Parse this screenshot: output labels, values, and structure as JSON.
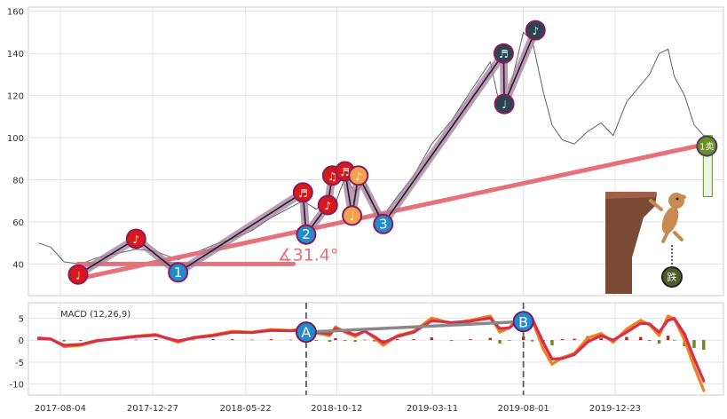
{
  "chart_data": [
    {
      "type": "line",
      "panel": "price",
      "xlim": [
        "2017-06-15",
        "2020-06-10"
      ],
      "ylim": [
        25,
        162
      ],
      "y_ticks": [
        40,
        60,
        80,
        100,
        120,
        140,
        160
      ],
      "grid": true,
      "price_series": {
        "x": [
          "2017-07-01",
          "2017-07-20",
          "2017-08-10",
          "2017-09-05",
          "2017-10-01",
          "2017-11-01",
          "2017-12-01",
          "2018-01-01",
          "2018-02-05",
          "2018-03-01",
          "2018-04-01",
          "2018-05-01",
          "2018-06-01",
          "2018-07-01",
          "2018-08-01",
          "2018-08-20",
          "2018-09-10",
          "2018-10-01",
          "2018-10-10",
          "2018-10-25",
          "2018-11-10",
          "2018-11-25",
          "2018-12-10",
          "2018-12-24",
          "2019-01-15",
          "2019-02-10",
          "2019-03-10",
          "2019-04-10",
          "2019-05-10",
          "2019-06-10",
          "2019-06-25",
          "2019-07-10",
          "2019-08-01",
          "2019-08-15",
          "2019-09-01",
          "2019-09-15",
          "2019-10-01",
          "2019-10-20",
          "2019-11-10",
          "2019-12-01",
          "2019-12-20",
          "2020-01-10",
          "2020-02-01",
          "2020-02-15",
          "2020-03-01",
          "2020-03-15",
          "2020-03-25",
          "2020-04-10",
          "2020-04-25",
          "2020-05-10"
        ],
        "y": [
          50,
          48,
          41,
          40,
          43,
          45,
          47,
          46,
          42,
          45,
          49,
          52,
          56,
          62,
          67,
          70,
          66,
          73,
          69,
          81,
          74,
          79,
          67,
          63,
          72,
          82,
          97,
          108,
          122,
          136,
          115,
          122,
          150,
          146,
          122,
          106,
          99,
          97,
          103,
          107,
          101,
          117,
          125,
          130,
          140,
          142,
          129,
          120,
          106,
          101
        ]
      },
      "wave_points": [
        {
          "x": "2017-09-01",
          "y": 35,
          "marker": "note-1",
          "color": "#d7191c"
        },
        {
          "x": "2017-12-01",
          "y": 52,
          "marker": "note-2",
          "color": "#d7191c"
        },
        {
          "x": "2018-02-05",
          "y": 36,
          "marker": "1",
          "color": "#1f8bd0"
        },
        {
          "x": "2018-08-20",
          "y": 74,
          "marker": "note-3",
          "color": "#d7191c"
        },
        {
          "x": "2018-08-25",
          "y": 54,
          "marker": "2",
          "color": "#1f8bd0"
        },
        {
          "x": "2018-09-28",
          "y": 68,
          "marker": "note-4",
          "color": "#d7191c"
        },
        {
          "x": "2018-10-05",
          "y": 82,
          "marker": "note-5",
          "color": "#d7191c"
        },
        {
          "x": "2018-10-25",
          "y": 84,
          "marker": "note-6",
          "color": "#d7191c"
        },
        {
          "x": "2018-11-05",
          "y": 63,
          "marker": "note-7",
          "color": "#f4a24f"
        },
        {
          "x": "2018-11-15",
          "y": 82,
          "marker": "note-8",
          "color": "#f4a24f"
        },
        {
          "x": "2018-12-24",
          "y": 59,
          "marker": "3",
          "color": "#1f8bd0"
        },
        {
          "x": "2019-07-01",
          "y": 140,
          "marker": "note-9",
          "color": "#2b4550"
        },
        {
          "x": "2019-07-02",
          "y": 116,
          "marker": "note-10",
          "color": "#2b4550"
        },
        {
          "x": "2019-08-20",
          "y": 151,
          "marker": "note-11",
          "color": "#2b4550"
        }
      ],
      "trend_line": {
        "x": [
          "2017-09-01",
          "2020-05-15"
        ],
        "y": [
          33,
          97
        ],
        "color": "#e8707a"
      },
      "angle_line": {
        "x": [
          "2017-09-01",
          "2018-08-05"
        ],
        "y": [
          40,
          40
        ],
        "color": "#e8707a"
      },
      "angle_label": "∡31.4°",
      "sell_marker": {
        "x": "2020-05-15",
        "y": 96,
        "label": "1卖",
        "color": "#6b8e23"
      },
      "spring_marker": {
        "label": "跌"
      },
      "annotations": [
        "1",
        "2",
        "3"
      ]
    },
    {
      "type": "line",
      "panel": "macd",
      "title": "MACD (12,26,9)",
      "ylim": [
        -12.5,
        8.5
      ],
      "y_ticks": [
        5,
        0,
        -5,
        -10
      ],
      "x_ticks": [
        "2017-08-04",
        "2017-12-27",
        "2018-05-22",
        "2018-10-12",
        "2019-03-11",
        "2019-08-01",
        "2019-12-23"
      ],
      "x": [
        "2017-07-01",
        "2017-07-20",
        "2017-08-10",
        "2017-09-05",
        "2017-10-01",
        "2017-11-01",
        "2017-12-01",
        "2018-01-01",
        "2018-02-05",
        "2018-03-01",
        "2018-04-01",
        "2018-05-01",
        "2018-06-01",
        "2018-07-01",
        "2018-08-01",
        "2018-08-20",
        "2018-09-10",
        "2018-10-01",
        "2018-10-10",
        "2018-10-25",
        "2018-11-10",
        "2018-11-25",
        "2018-12-10",
        "2018-12-24",
        "2019-01-15",
        "2019-02-10",
        "2019-03-10",
        "2019-04-10",
        "2019-05-10",
        "2019-06-10",
        "2019-06-25",
        "2019-07-10",
        "2019-08-01",
        "2019-08-15",
        "2019-09-01",
        "2019-09-15",
        "2019-10-01",
        "2019-10-20",
        "2019-11-10",
        "2019-12-01",
        "2019-12-20",
        "2020-01-10",
        "2020-02-01",
        "2020-02-15",
        "2020-03-01",
        "2020-03-15",
        "2020-03-25",
        "2020-04-10",
        "2020-04-25",
        "2020-05-10"
      ],
      "series": [
        {
          "values": [
            0.5,
            0.3,
            -1.5,
            -1.2,
            -0.2,
            0.4,
            0.9,
            1.3,
            -0.5,
            0.6,
            1.2,
            2.0,
            1.8,
            2.4,
            2.2,
            2.6,
            1.6,
            1.0,
            3.0,
            1.8,
            0.8,
            2.1,
            0.5,
            -1.2,
            1.0,
            2.0,
            5.0,
            3.8,
            4.5,
            5.5,
            1.8,
            2.8,
            6.2,
            4.5,
            -2.0,
            -5.5,
            -4.0,
            -3.0,
            0.5,
            1.5,
            -0.5,
            2.5,
            4.5,
            3.5,
            1.0,
            5.5,
            4.8,
            0.0,
            -6.0,
            -11.5
          ],
          "color": "#f08020"
        },
        {
          "values": [
            0.4,
            0.2,
            -1.2,
            -1.0,
            -0.1,
            0.3,
            0.8,
            1.1,
            -0.2,
            0.5,
            1.0,
            1.8,
            1.7,
            2.2,
            2.1,
            2.4,
            1.8,
            1.4,
            2.6,
            2.0,
            1.2,
            2.0,
            0.8,
            -0.6,
            0.8,
            1.8,
            4.4,
            4.0,
            4.3,
            5.0,
            2.6,
            2.8,
            5.4,
            4.8,
            -0.5,
            -4.3,
            -4.2,
            -3.3,
            -0.4,
            1.0,
            0.0,
            1.8,
            3.8,
            3.7,
            1.8,
            4.5,
            4.9,
            1.4,
            -4.2,
            -9.3
          ],
          "color": "#d62f4a"
        }
      ],
      "histogram": [
        0.1,
        0.1,
        -0.3,
        -0.2,
        -0.1,
        0.1,
        0.1,
        0.2,
        -0.3,
        0.1,
        0.2,
        0.2,
        0.1,
        0.2,
        0.1,
        0.2,
        -0.2,
        -0.4,
        0.4,
        -0.2,
        -0.4,
        0.1,
        -0.3,
        -0.6,
        0.2,
        0.2,
        0.6,
        -0.2,
        0.2,
        0.5,
        -0.8,
        0.0,
        0.8,
        -0.3,
        -1.5,
        -1.2,
        0.2,
        0.3,
        0.9,
        0.5,
        -0.5,
        0.7,
        0.7,
        -0.2,
        -0.8,
        1.0,
        -0.1,
        -1.4,
        -1.8,
        -2.2
      ],
      "divergence_markers": [
        {
          "x": "2018-08-25",
          "y": 1.8,
          "label": "A",
          "color": "#1f8bd0"
        },
        {
          "x": "2019-08-01",
          "y": 4.2,
          "label": "B",
          "color": "#1f8bd0"
        }
      ]
    }
  ]
}
